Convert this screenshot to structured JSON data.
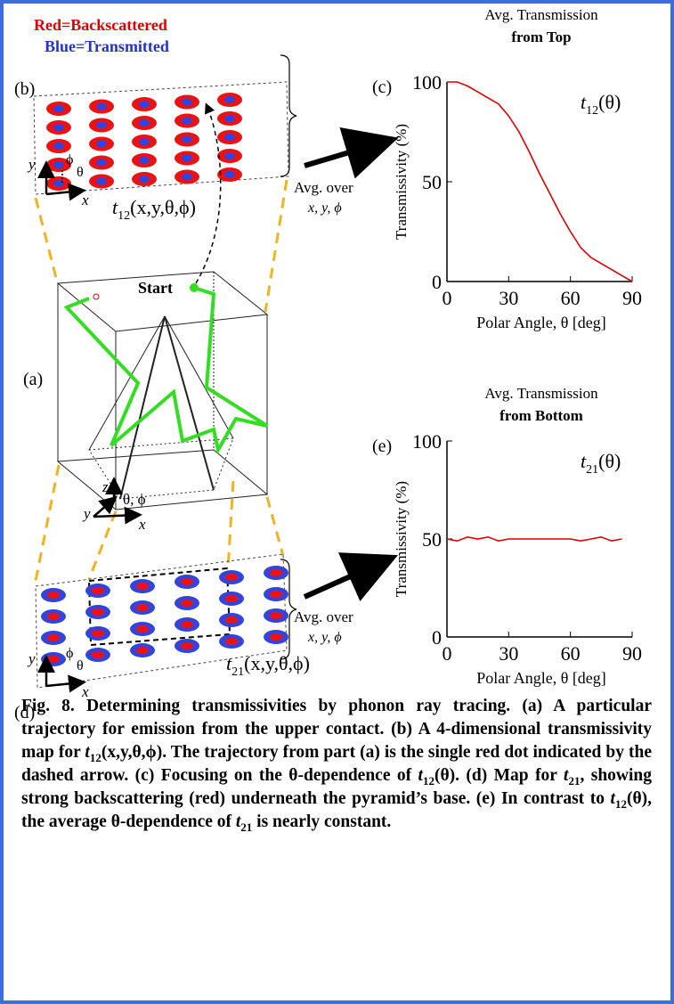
{
  "diagram": {
    "legend_red": "Red=Backscattered",
    "legend_blue": "Blue=Transmitted",
    "label_b": "(b)",
    "label_a": "(a)",
    "label_d": "(d)",
    "start": "Start",
    "avg_top": {
      "line1": "Avg. over",
      "line2": "x, y, ϕ"
    },
    "avg_bottom": {
      "line1": "Avg. over",
      "line2": "x, y, ϕ"
    },
    "map_top_label": {
      "symbol": "t",
      "subscript": "12",
      "args": "(x,y,θ,ϕ)"
    },
    "map_bottom_label": {
      "symbol": "t",
      "subscript": "21",
      "args": "(x,y,θ,ϕ)"
    },
    "axes_b": {
      "y": "y",
      "x": "x",
      "phi": "ϕ",
      "theta": "θ"
    },
    "axes_a": {
      "y": "y",
      "x": "x",
      "z": "z",
      "angles": "θ, ϕ"
    },
    "axes_d": {
      "y": "y",
      "x": "x",
      "phi": "ϕ",
      "theta": "θ"
    }
  },
  "chart_data": [
    {
      "type": "line",
      "panel": "(c)",
      "title": "Avg. Transmission",
      "subtitle": "from Top",
      "annotation": {
        "symbol": "t",
        "subscript": "12",
        "args": "(θ)"
      },
      "x_label": "Polar Angle, θ [deg]",
      "y_label": "Transmissivity (%)",
      "x": [
        0,
        5,
        10,
        15,
        20,
        25,
        30,
        35,
        40,
        45,
        50,
        55,
        60,
        65,
        70,
        75,
        80,
        85,
        90
      ],
      "values": [
        100,
        100,
        98,
        95,
        92,
        89,
        83,
        75,
        65,
        54,
        44,
        34,
        25,
        17,
        12,
        9,
        6,
        3,
        0
      ],
      "color": "#e00000",
      "xlim": [
        0,
        90
      ],
      "xticks": [
        0,
        30,
        60,
        90
      ],
      "ylim": [
        0,
        100
      ],
      "yticks": [
        0,
        50,
        100
      ]
    },
    {
      "type": "line",
      "panel": "(e)",
      "title": "Avg. Transmission",
      "subtitle": "from Bottom",
      "annotation": {
        "symbol": "t",
        "subscript": "21",
        "args": "(θ)"
      },
      "x_label": "Polar Angle, θ [deg]",
      "y_label": "Transmissivity (%)",
      "x": [
        0,
        5,
        10,
        15,
        20,
        25,
        30,
        35,
        40,
        45,
        50,
        55,
        60,
        65,
        70,
        75,
        80,
        85
      ],
      "values": [
        50,
        49,
        51,
        50,
        51,
        49,
        50,
        50,
        50,
        50,
        50,
        50,
        50,
        49,
        50,
        51,
        49,
        50
      ],
      "color": "#e00000",
      "xlim": [
        0,
        90
      ],
      "xticks": [
        0,
        30,
        60,
        90
      ],
      "ylim": [
        0,
        100
      ],
      "yticks": [
        0,
        50,
        100
      ]
    }
  ],
  "caption": [
    "Fig. 8.  Determining transmissivities by phonon ray tracing. (a) A particular trajectory for emission from the upper contact.   (b) A 4-dimensional transmissivity map for ",
    {
      "i": "t"
    },
    {
      "sub": "12"
    },
    "(x,y,θ,ϕ). The trajectory from part (a) is the single red dot indicated by the dashed arrow.  (c)  Focusing on the θ-dependence of ",
    {
      "i": "t"
    },
    {
      "sub": "12"
    },
    "(θ).  (d)  Map for ",
    {
      "i": "t"
    },
    {
      "sub": "21"
    },
    ", showing strong backscattering (red) underneath the pyramid’s base.  (e) In contrast to ",
    {
      "i": "t"
    },
    {
      "sub": "12"
    },
    "(θ), the average θ-dependence of ",
    {
      "i": "t"
    },
    {
      "sub": "21"
    },
    " is nearly constant."
  ]
}
